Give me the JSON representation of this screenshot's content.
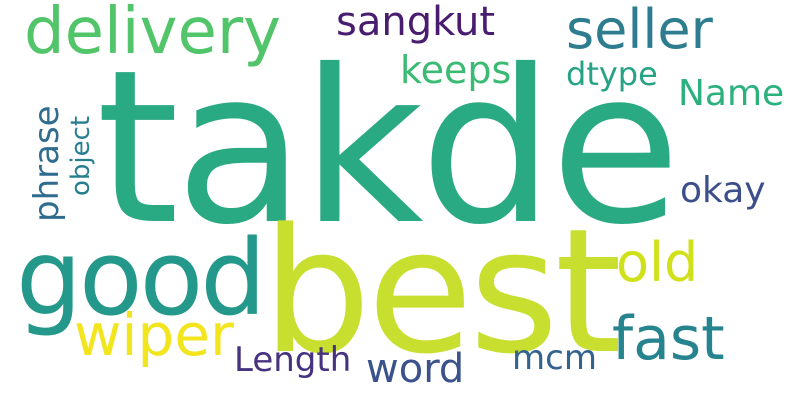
{
  "wordcloud": {
    "words": [
      {
        "text": "takde",
        "color": "#2aaa82",
        "orientation": "horizontal"
      },
      {
        "text": "best",
        "color": "#c8df30",
        "orientation": "horizontal"
      },
      {
        "text": "good",
        "color": "#24988a",
        "orientation": "horizontal"
      },
      {
        "text": "delivery",
        "color": "#52c46a",
        "orientation": "horizontal"
      },
      {
        "text": "seller",
        "color": "#2d7d8f",
        "orientation": "horizontal"
      },
      {
        "text": "sangkut",
        "color": "#481d6f",
        "orientation": "horizontal"
      },
      {
        "text": "keeps",
        "color": "#3bba74",
        "orientation": "horizontal"
      },
      {
        "text": "dtype",
        "color": "#26a285",
        "orientation": "horizontal"
      },
      {
        "text": "Name",
        "color": "#2cb17e",
        "orientation": "horizontal"
      },
      {
        "text": "okay",
        "color": "#3c4f8a",
        "orientation": "horizontal"
      },
      {
        "text": "old",
        "color": "#d0e11c",
        "orientation": "horizontal"
      },
      {
        "text": "fast",
        "color": "#25848e",
        "orientation": "horizontal"
      },
      {
        "text": "wiper",
        "color": "#f2e51d",
        "orientation": "horizontal"
      },
      {
        "text": "Length",
        "color": "#46327e",
        "orientation": "horizontal"
      },
      {
        "text": "word",
        "color": "#3b528b",
        "orientation": "horizontal"
      },
      {
        "text": "mcm",
        "color": "#33638d",
        "orientation": "horizontal"
      },
      {
        "text": "phrase",
        "color": "#2f6c8e",
        "orientation": "vertical"
      },
      {
        "text": "object",
        "color": "#277f8e",
        "orientation": "vertical"
      }
    ]
  }
}
